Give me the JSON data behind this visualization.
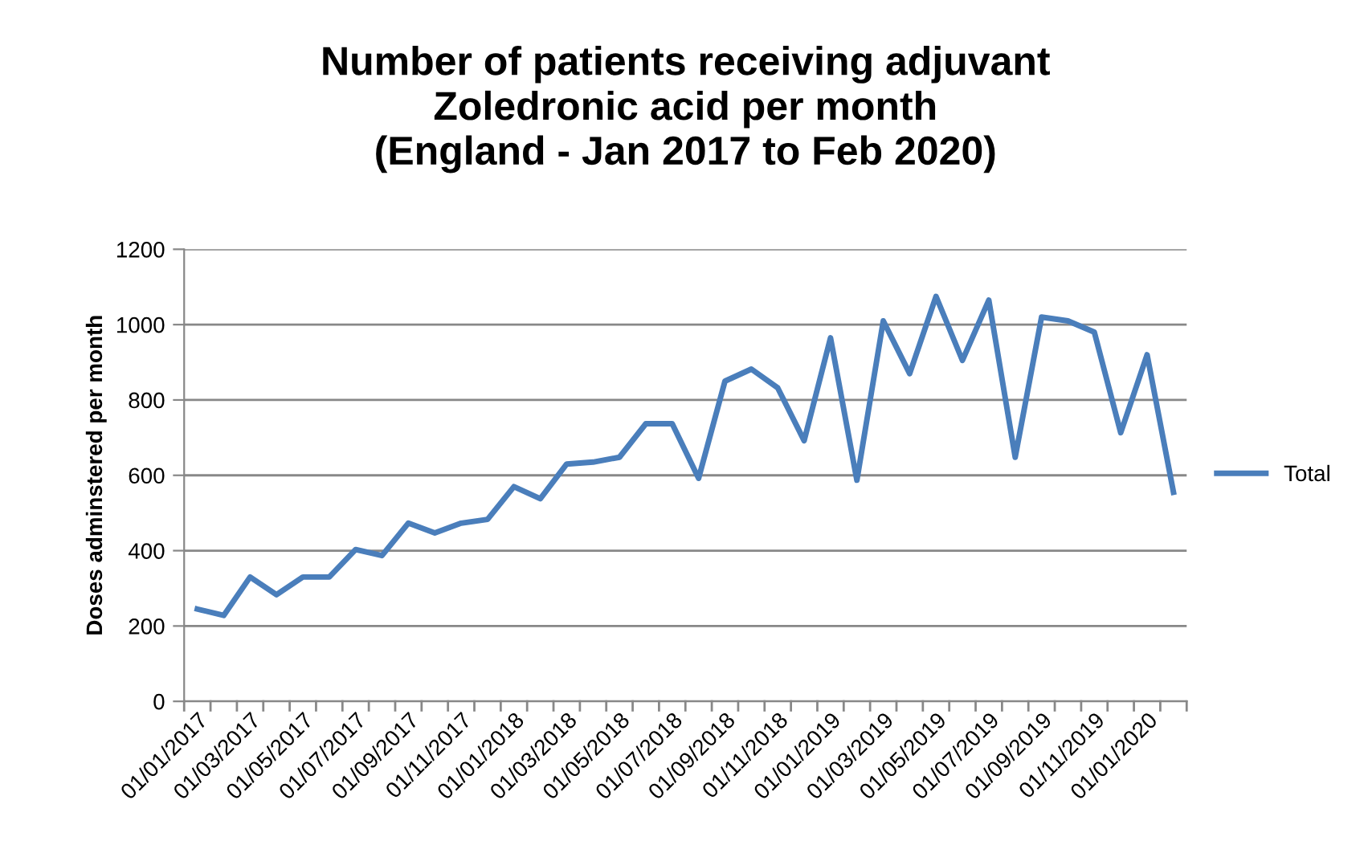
{
  "chart_data": {
    "type": "line",
    "title": "Number of patients receiving adjuvant\nZoledronic acid per month\n(England - Jan 2017 to Feb 2020)",
    "ylabel": "Doses adminstered per month",
    "categories": [
      "01/01/2017",
      null,
      "01/03/2017",
      null,
      "01/05/2017",
      null,
      "01/07/2017",
      null,
      "01/09/2017",
      null,
      "01/11/2017",
      null,
      "01/01/2018",
      null,
      "01/03/2018",
      null,
      "01/05/2018",
      null,
      "01/07/2018",
      null,
      "01/09/2018",
      null,
      "01/11/2018",
      null,
      "01/01/2019",
      null,
      "01/03/2019",
      null,
      "01/05/2019",
      null,
      "01/07/2019",
      null,
      "01/09/2019",
      null,
      "01/11/2019",
      null,
      "01/01/2020",
      null
    ],
    "series": [
      {
        "name": "Total",
        "color": "#4a7ebb",
        "values": [
          245,
          228,
          330,
          283,
          330,
          330,
          403,
          387,
          473,
          447,
          473,
          483,
          570,
          538,
          630,
          635,
          648,
          737,
          737,
          592,
          850,
          882,
          832,
          692,
          965,
          587,
          1010,
          870,
          1075,
          905,
          1065,
          648,
          1020,
          1010,
          980,
          713,
          920,
          555
        ]
      }
    ],
    "ylim": [
      0,
      1200
    ],
    "yticks": [
      0,
      200,
      400,
      600,
      800,
      1000,
      1200
    ],
    "grid": "y",
    "legend": "right",
    "marker": "none",
    "line_style": "solid"
  }
}
